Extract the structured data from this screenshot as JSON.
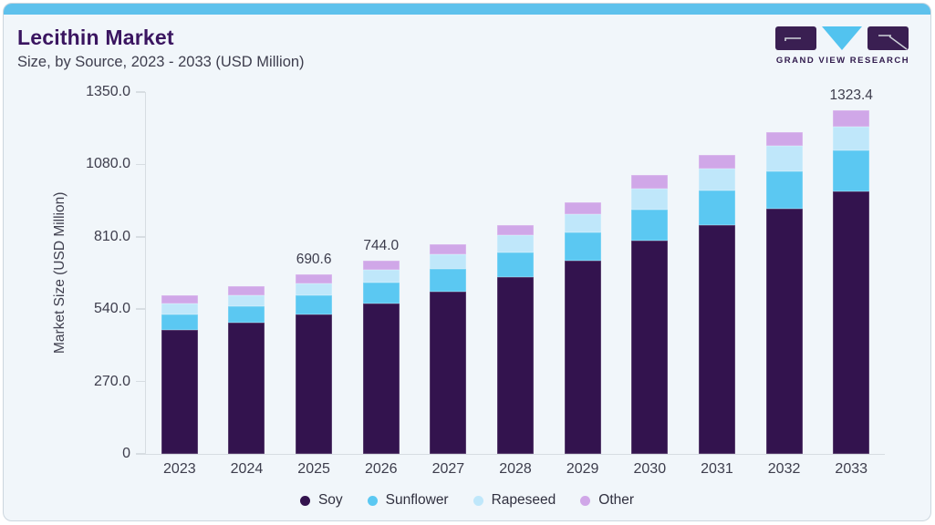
{
  "header": {
    "title": "Lecithin Market",
    "subtitle": "Size, by Source, 2023 - 2033 (USD Million)"
  },
  "logo": {
    "caption": "GRAND VIEW RESEARCH"
  },
  "chart_data": {
    "type": "bar",
    "stacked": true,
    "title": "Lecithin Market Size, by Source, 2023 - 2033 (USD Million)",
    "ylabel": "Market Size (USD Million)",
    "ylim": [
      0,
      1350
    ],
    "ytick_labels": [
      "0",
      "270.0",
      "540.0",
      "810.0",
      "1080.0",
      "1350.0"
    ],
    "grid": false,
    "legend_position": "bottom",
    "categories": [
      "2023",
      "2024",
      "2025",
      "2026",
      "2027",
      "2028",
      "2029",
      "2030",
      "2031",
      "2032",
      "2033"
    ],
    "series": [
      {
        "name": "Soy",
        "color": "#33134e",
        "values": [
          476,
          504,
          537,
          578,
          625,
          681,
          745,
          822,
          881,
          945,
          1010
        ]
      },
      {
        "name": "Sunflower",
        "color": "#5bc8f2",
        "values": [
          60,
          66,
          72,
          80,
          87,
          95,
          107,
          119,
          133,
          143,
          157
        ]
      },
      {
        "name": "Rapeseed",
        "color": "#bfe7fa",
        "values": [
          42,
          41,
          49,
          50,
          58,
          67,
          70,
          80,
          83,
          97,
          94
        ]
      },
      {
        "name": "Other",
        "color": "#d0a7e8",
        "values": [
          34,
          34,
          32.6,
          36,
          37,
          38,
          47,
          52,
          55,
          53,
          62.4
        ]
      }
    ],
    "totals": [
      612,
      645,
      690.6,
      744.0,
      807,
      881,
      969,
      1073,
      1152,
      1238,
      1323.4
    ],
    "shown_total_labels": {
      "2025": "690.6",
      "2026": "744.0",
      "2033": "1323.4"
    }
  },
  "style": {
    "accent_bar": "#5ec1ec",
    "card_bg": "#f1f6fa",
    "card_border": "#ccd6de",
    "title_color": "#3a1560",
    "text_color": "#3e3e4e",
    "axis_color": "#d7dde2",
    "bar_label_color": "#3c3c4c",
    "logo_purple": "#3a1f52",
    "logo_blue": "#52c3ef"
  }
}
